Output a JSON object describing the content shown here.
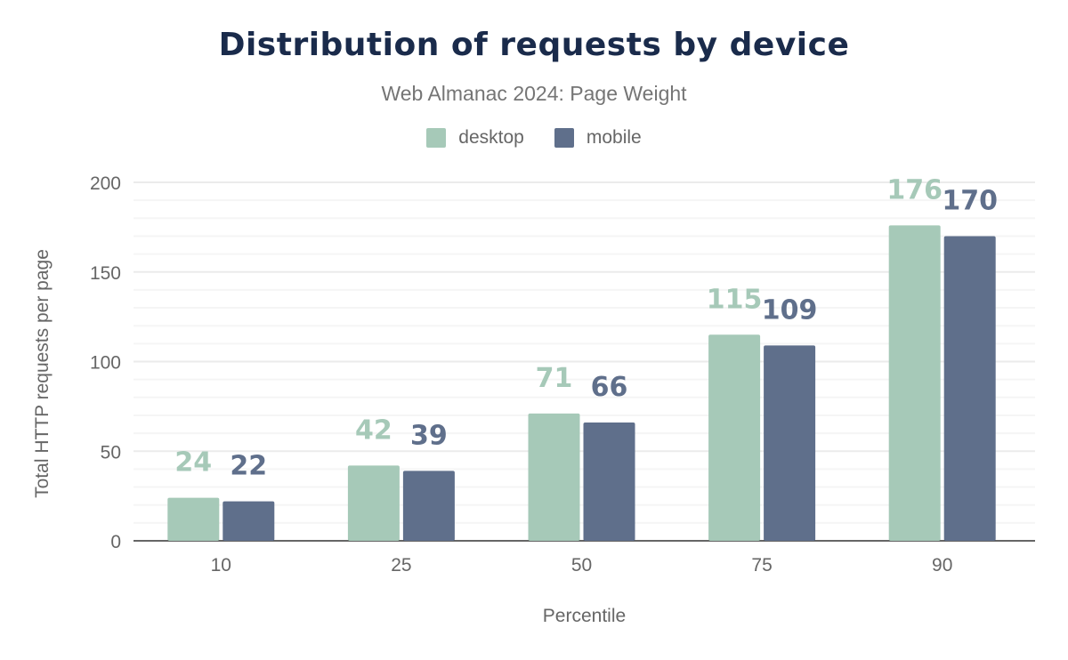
{
  "chart_data": {
    "type": "bar",
    "title": "Distribution of requests by device",
    "subtitle": "Web Almanac 2024: Page Weight",
    "xlabel": "Percentile",
    "ylabel": "Total HTTP requests per page",
    "categories": [
      "10",
      "25",
      "50",
      "75",
      "90"
    ],
    "series": [
      {
        "name": "desktop",
        "color": "#a6c9b8",
        "values": [
          24,
          42,
          71,
          115,
          176
        ]
      },
      {
        "name": "mobile",
        "color": "#5f6f8b",
        "values": [
          22,
          39,
          66,
          109,
          170
        ]
      }
    ],
    "ylim": [
      0,
      200
    ],
    "yticks": [
      0,
      50,
      100,
      150,
      200
    ],
    "grid": true,
    "legend_position": "top"
  }
}
